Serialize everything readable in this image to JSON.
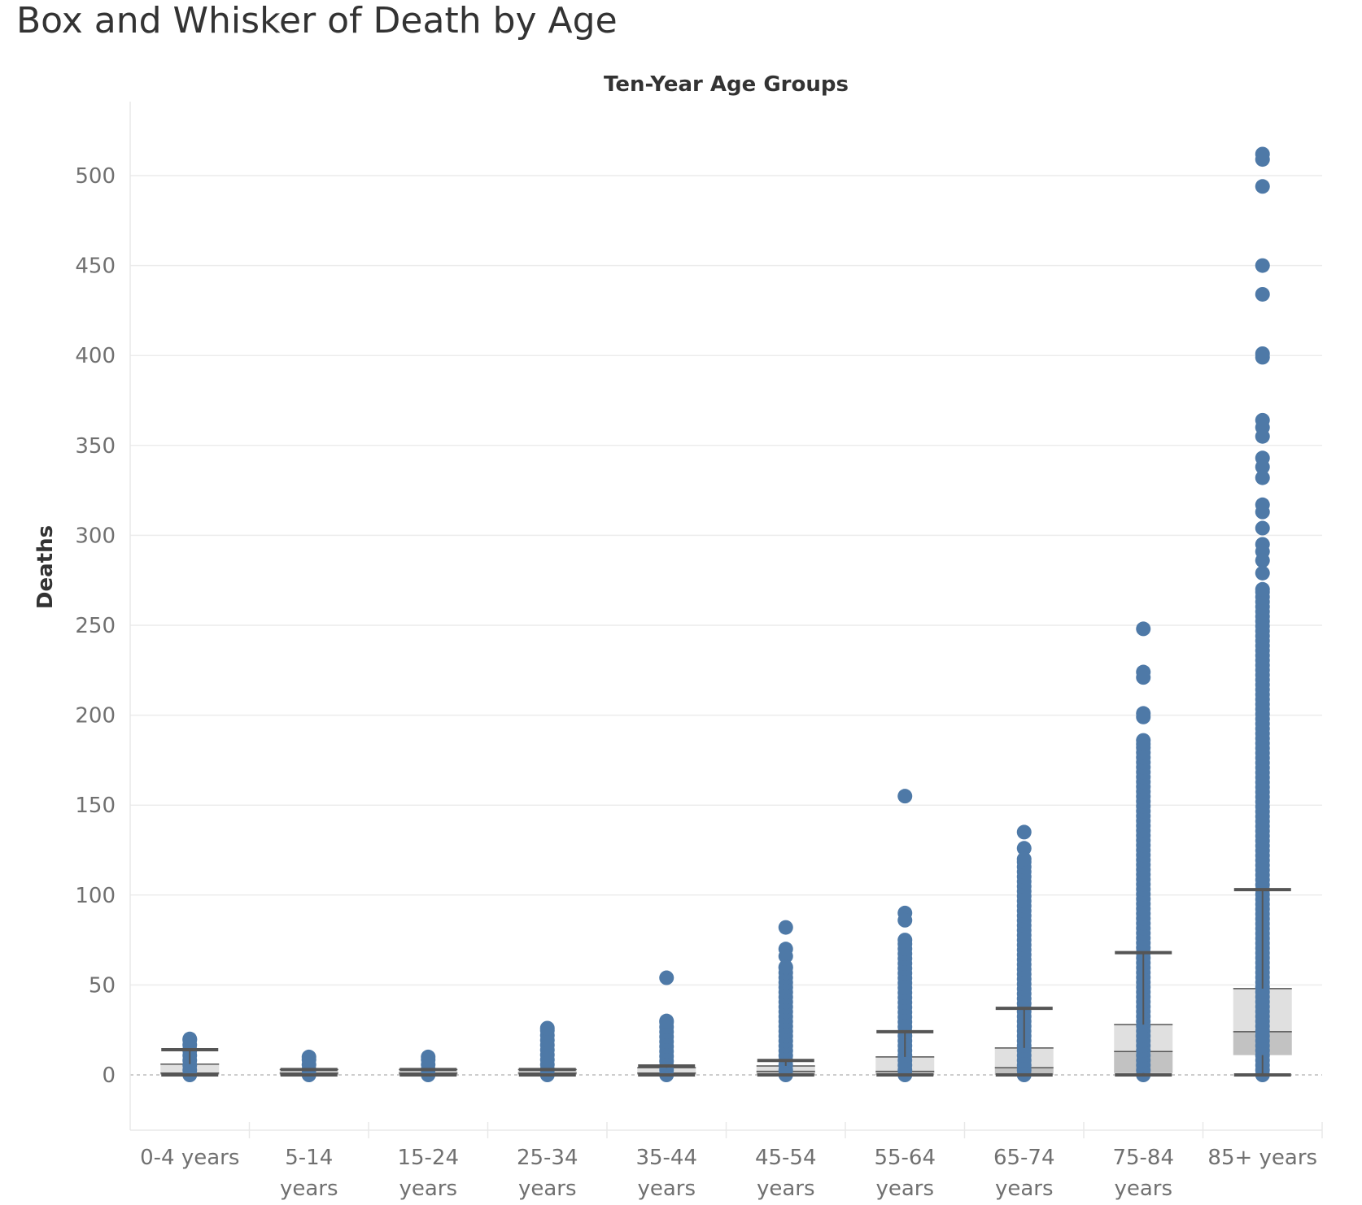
{
  "page": {
    "title": "Box and Whisker of Death by Age"
  },
  "chart_data": {
    "type": "boxplot",
    "column_header": "Ten-Year Age Groups",
    "ylabel": "Deaths",
    "xlabel": "",
    "ylim": [
      -30,
      530
    ],
    "yticks": [
      0,
      50,
      100,
      150,
      200,
      250,
      300,
      350,
      400,
      450,
      500
    ],
    "grid": true,
    "legend": "none",
    "point_color": "#4e79a7",
    "categories": [
      {
        "label": [
          "0-4 years"
        ],
        "min": 0,
        "q1": 0,
        "median": 1,
        "q3": 6,
        "whisker_high": 14,
        "max": 20
      },
      {
        "label": [
          "5-14",
          "years"
        ],
        "min": 0,
        "q1": 0,
        "median": 1,
        "q3": 3,
        "whisker_high": 3,
        "max": 10
      },
      {
        "label": [
          "15-24",
          "years"
        ],
        "min": 0,
        "q1": 0,
        "median": 1,
        "q3": 3,
        "whisker_high": 3,
        "max": 10
      },
      {
        "label": [
          "25-34",
          "years"
        ],
        "min": 0,
        "q1": 0,
        "median": 1,
        "q3": 3,
        "whisker_high": 3,
        "max": 26
      },
      {
        "label": [
          "35-44",
          "years"
        ],
        "min": 0,
        "q1": 0,
        "median": 1,
        "q3": 4,
        "whisker_high": 5,
        "max": 54,
        "outliers": [
          30
        ]
      },
      {
        "label": [
          "45-54",
          "years"
        ],
        "min": 0,
        "q1": 0,
        "median": 2,
        "q3": 5,
        "whisker_high": 8,
        "max": 82,
        "outliers": [
          70,
          66,
          60
        ]
      },
      {
        "label": [
          "55-64",
          "years"
        ],
        "min": 0,
        "q1": 0,
        "median": 2,
        "q3": 10,
        "whisker_high": 24,
        "max": 155,
        "outliers": [
          90,
          86,
          75
        ]
      },
      {
        "label": [
          "65-74",
          "years"
        ],
        "min": 0,
        "q1": 0,
        "median": 4,
        "q3": 15,
        "whisker_high": 37,
        "max": 135,
        "outliers": [
          126,
          120
        ]
      },
      {
        "label": [
          "75-84",
          "years"
        ],
        "min": 0,
        "q1": 1,
        "median": 13,
        "q3": 28,
        "whisker_high": 68,
        "max": 248,
        "outliers": [
          224,
          221,
          201,
          199,
          186,
          184
        ]
      },
      {
        "label": [
          "85+ years"
        ],
        "min": 0,
        "q1": 11,
        "median": 24,
        "q3": 48,
        "whisker_high": 103,
        "max": 512,
        "outliers": [
          509,
          494,
          450,
          434,
          401,
          399,
          364,
          360,
          355,
          343,
          338,
          332,
          317,
          313,
          304,
          295,
          291,
          286,
          279,
          270
        ]
      }
    ]
  }
}
